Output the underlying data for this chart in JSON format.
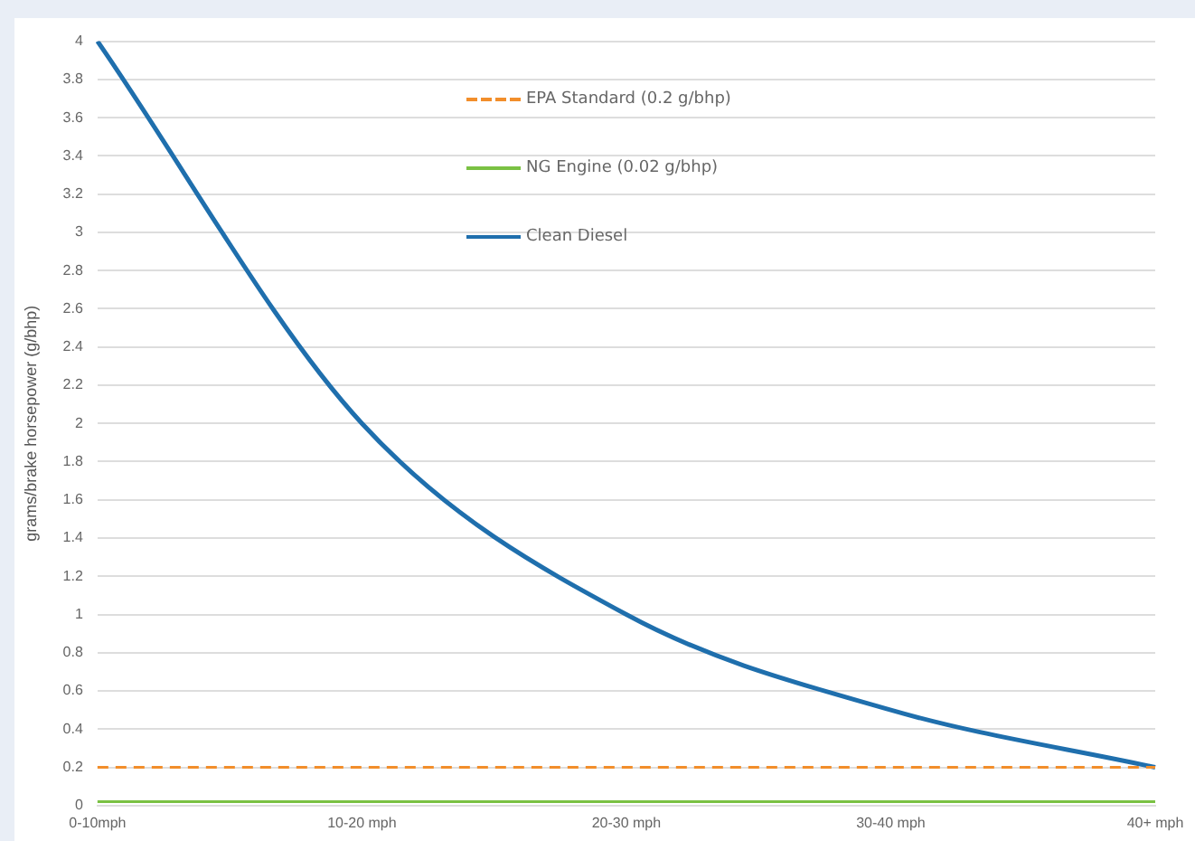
{
  "chart_data": {
    "type": "line",
    "ylabel": "grams/brake horsepower (g/bhp)",
    "categories": [
      "0-10mph",
      "10-20 mph",
      "20-30 mph",
      "30-40 mph",
      "40+ mph"
    ],
    "series": [
      {
        "name": "EPA Standard (0.2 g/bhp)",
        "color": "#f28e2b",
        "values": [
          0.2,
          0.2,
          0.2,
          0.2,
          0.2
        ],
        "line_style": "dashed"
      },
      {
        "name": "NG Engine (0.02 g/bhp)",
        "color": "#7ac143",
        "values": [
          0.02,
          0.02,
          0.02,
          0.02,
          0.02
        ],
        "line_style": "solid"
      },
      {
        "name": "Clean Diesel",
        "color": "#1f6fad",
        "values": [
          4,
          2,
          1,
          0.5,
          0.2
        ],
        "line_style": "solid"
      }
    ],
    "ylim": [
      0,
      4
    ],
    "yticks": [
      0,
      0.2,
      0.4,
      0.6,
      0.8,
      1,
      1.2,
      1.4,
      1.6,
      1.8,
      2,
      2.2,
      2.4,
      2.6,
      2.8,
      3,
      3.2,
      3.4,
      3.6,
      3.8,
      4
    ],
    "grid": "y",
    "legend": "top",
    "marker": "none"
  }
}
